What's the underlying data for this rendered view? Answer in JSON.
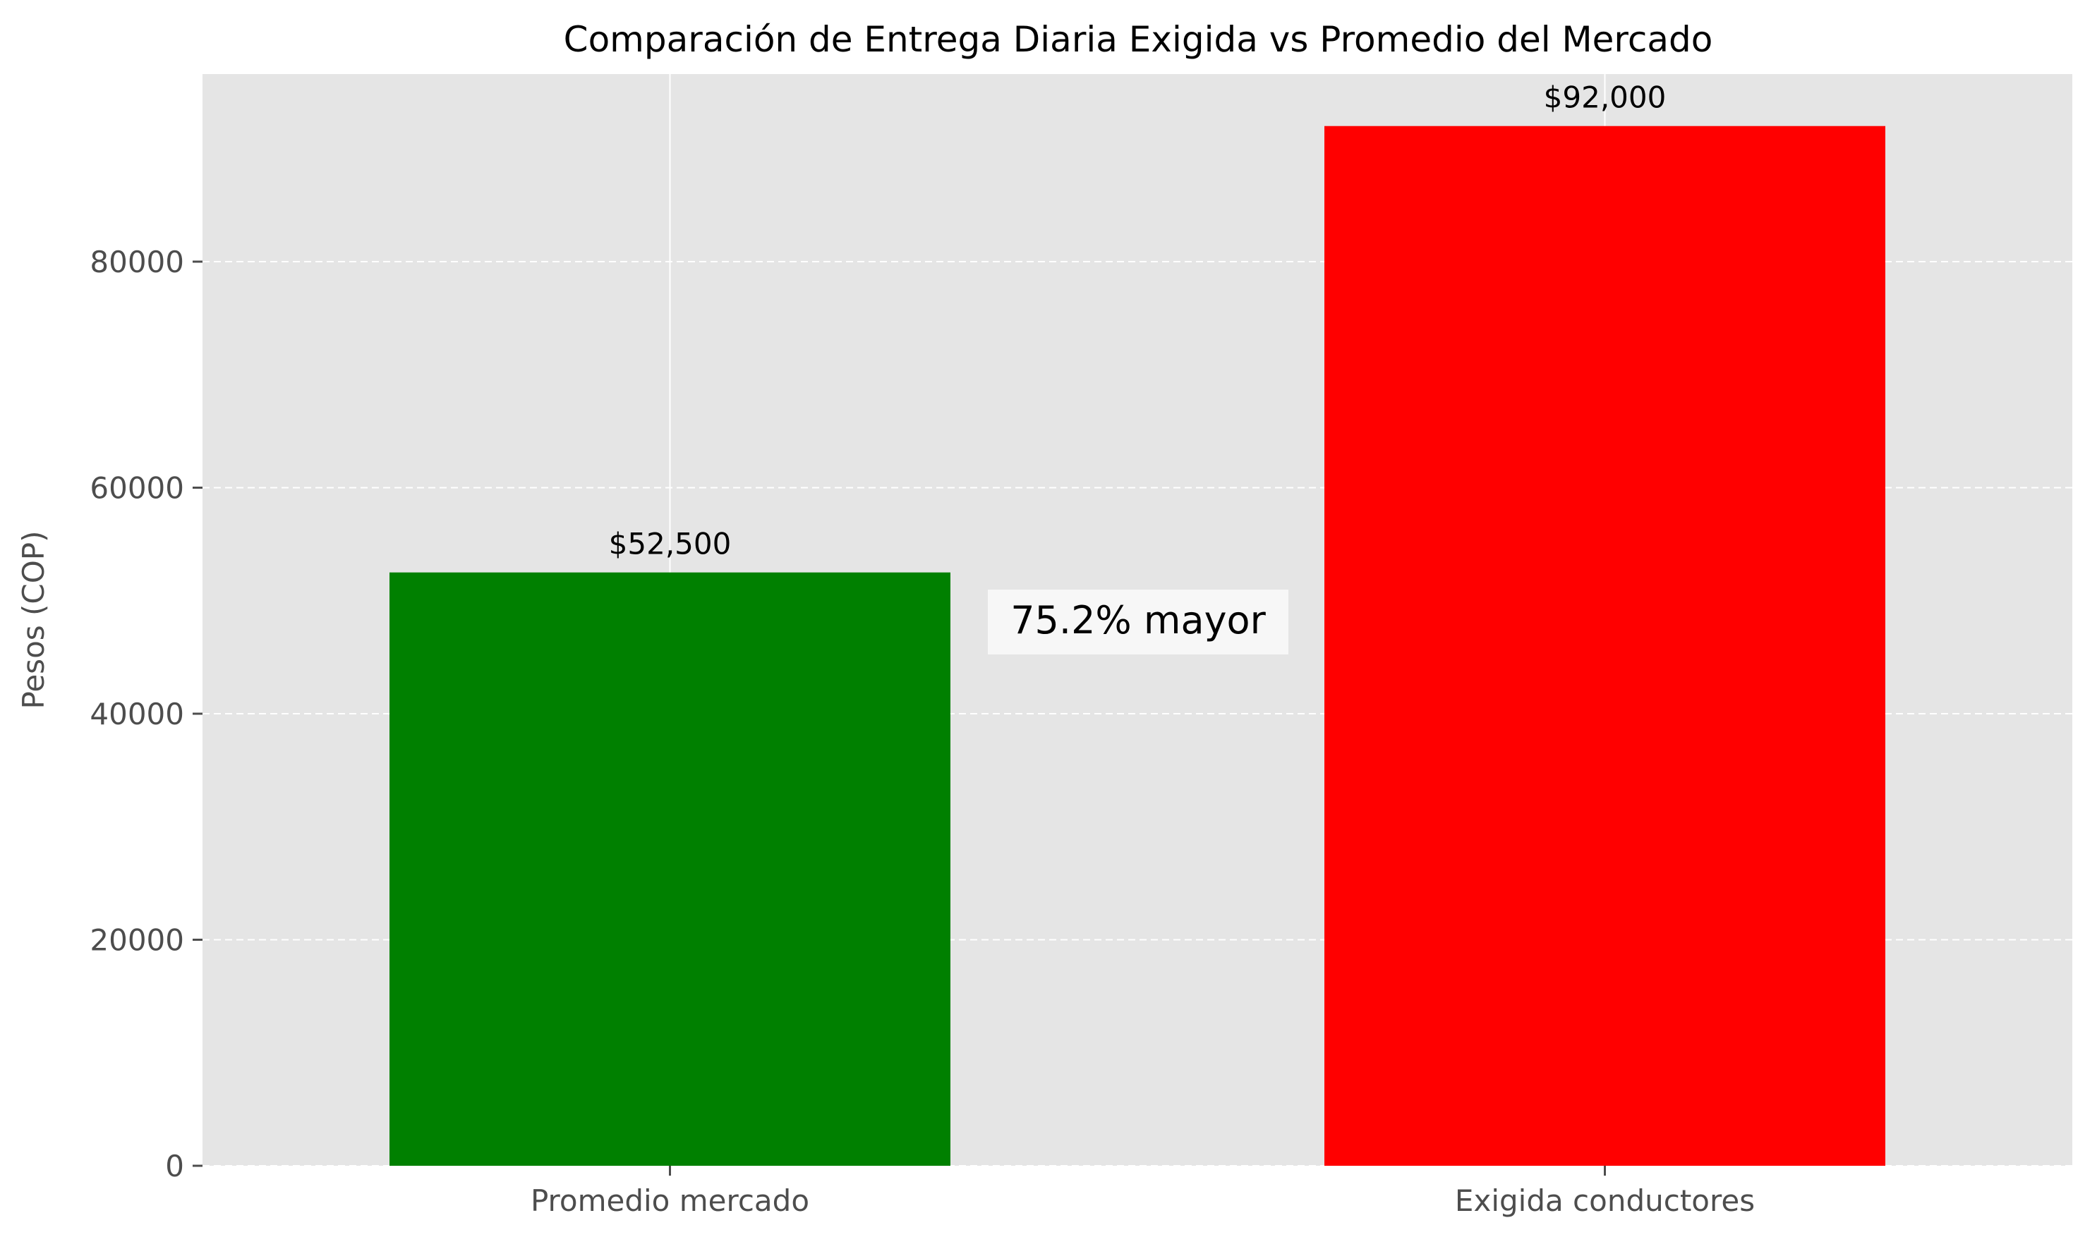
{
  "chart_data": {
    "type": "bar",
    "title": "Comparación de Entrega Diaria Exigida vs Promedio del Mercado",
    "xlabel": "",
    "ylabel": "Pesos (COP)",
    "categories": [
      "Promedio mercado",
      "Exigida conductores"
    ],
    "values": [
      52500,
      92000
    ],
    "data_labels": [
      "$52,500",
      "$92,000"
    ],
    "colors": [
      "#008000",
      "#ff0000"
    ],
    "ylim": [
      0,
      96600
    ],
    "yticks": [
      0,
      20000,
      40000,
      60000,
      80000
    ],
    "ytick_labels": [
      "0",
      "20000",
      "40000",
      "60000",
      "80000"
    ],
    "grid": true,
    "annotation": "75.2% mayor"
  }
}
